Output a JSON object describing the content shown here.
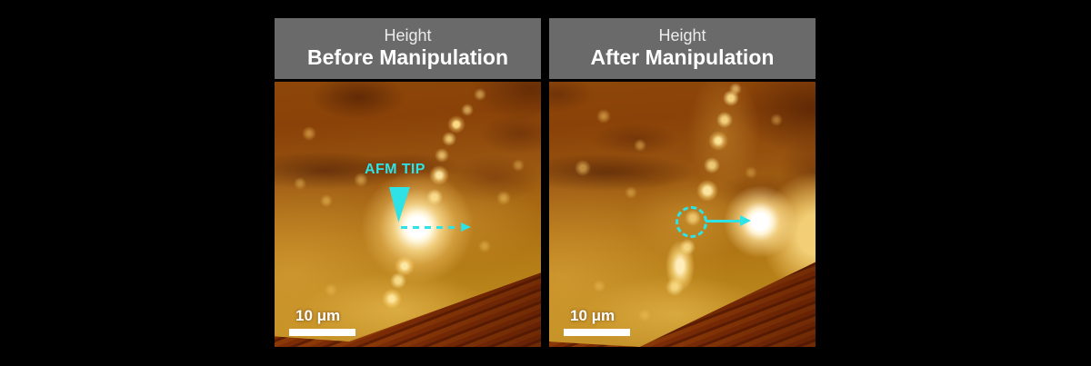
{
  "figure": {
    "title": "AFM nanoparticle manipulation figure",
    "panels": [
      {
        "id": "before",
        "header": {
          "line1": "Height",
          "line2": "Before Manipulation"
        },
        "scale_bar_label": "10 μm",
        "annotations": {
          "tip_label": "AFM TIP",
          "tip_marker": "cyan inverted-triangle marking AFM tip position",
          "path_arrow": "cyan dashed arrow pointing right (planned push direction)"
        }
      },
      {
        "id": "after",
        "header": {
          "line1": "Height",
          "line2": "After Manipulation"
        },
        "scale_bar_label": "10 μm",
        "annotations": {
          "origin_marker": "cyan dashed circle at particle's original position",
          "move_arrow": "cyan solid arrow pointing right to displaced particle"
        }
      }
    ],
    "colors": {
      "accent_cyan": "#2ee2e6",
      "header_bg": "#6a6a6a",
      "header_text": "#ffffff",
      "page_bg": "#000000",
      "scale_bar": "#ffffff",
      "afm_dark_brown": "#6b2a05",
      "afm_mid_amber": "#a96a12",
      "afm_bright_gold": "#e7b446",
      "afm_hot_white": "#ffffff"
    }
  }
}
